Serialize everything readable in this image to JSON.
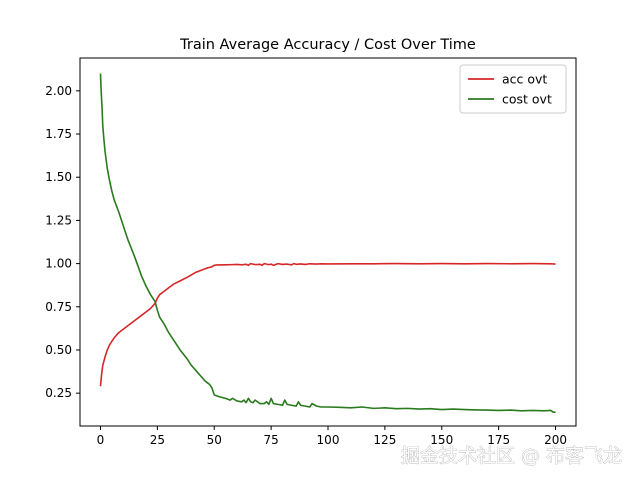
{
  "watermark": "掘金技术社区 @ 布客飞龙",
  "chart_data": {
    "type": "line",
    "title": "Train Average Accuracy / Cost Over Time",
    "xlabel": "",
    "ylabel": "",
    "xlim": [
      -9,
      209
    ],
    "ylim": [
      0.06,
      2.19
    ],
    "xticks": [
      0,
      25,
      50,
      75,
      100,
      125,
      150,
      175,
      200
    ],
    "xtick_labels": [
      "0",
      "25",
      "50",
      "75",
      "100",
      "125",
      "150",
      "175",
      "200"
    ],
    "yticks": [
      0.25,
      0.5,
      0.75,
      1.0,
      1.25,
      1.5,
      1.75,
      2.0
    ],
    "ytick_labels": [
      "0.25",
      "0.50",
      "0.75",
      "1.00",
      "1.25",
      "1.50",
      "1.75",
      "2.00"
    ],
    "grid": false,
    "legend_position": "top-right",
    "series": [
      {
        "name": "acc ovt",
        "color": "#d62728",
        "x": [
          0,
          0.5,
          1,
          2,
          3,
          4,
          5,
          6,
          8,
          10,
          12,
          15,
          18,
          20,
          22,
          24,
          25,
          26,
          28,
          30,
          32,
          35,
          38,
          40,
          42,
          44,
          46,
          47,
          48,
          49,
          50,
          51,
          52,
          55,
          58,
          60,
          62,
          64,
          65,
          66,
          68,
          70,
          71,
          72,
          74,
          75,
          76,
          78,
          80,
          82,
          84,
          85,
          86,
          88,
          90,
          92,
          95,
          97,
          100,
          110,
          120,
          130,
          140,
          150,
          160,
          170,
          180,
          190,
          198,
          200
        ],
        "y": [
          0.29,
          0.36,
          0.41,
          0.46,
          0.5,
          0.53,
          0.55,
          0.57,
          0.6,
          0.62,
          0.64,
          0.67,
          0.7,
          0.72,
          0.74,
          0.77,
          0.8,
          0.82,
          0.84,
          0.86,
          0.88,
          0.9,
          0.92,
          0.935,
          0.95,
          0.96,
          0.97,
          0.975,
          0.978,
          0.982,
          0.99,
          0.992,
          0.992,
          0.993,
          0.994,
          0.995,
          0.993,
          0.996,
          0.99,
          1.0,
          0.994,
          0.996,
          0.99,
          1.0,
          0.994,
          0.997,
          0.99,
          1.0,
          0.995,
          0.997,
          0.993,
          1.0,
          0.996,
          0.998,
          0.995,
          0.999,
          0.997,
          0.999,
          0.998,
          0.999,
          0.999,
          1.0,
          0.999,
          1.0,
          0.999,
          1.0,
          0.999,
          1.0,
          0.999,
          0.997
        ]
      },
      {
        "name": "cost ovt",
        "color": "#2a7a1e",
        "x": [
          0,
          0.3,
          0.7,
          1,
          1.5,
          2,
          3,
          4,
          5,
          6,
          8,
          10,
          12,
          15,
          18,
          20,
          22,
          24,
          25,
          26,
          28,
          30,
          32,
          35,
          38,
          40,
          42,
          44,
          46,
          47,
          48,
          49,
          50,
          52,
          55,
          57,
          58,
          60,
          62,
          63,
          64,
          65,
          66,
          67,
          68,
          70,
          72,
          73,
          74,
          75,
          76,
          78,
          80,
          81,
          82,
          84,
          86,
          87,
          88,
          90,
          92,
          93,
          95,
          97,
          100,
          105,
          110,
          115,
          120,
          125,
          130,
          135,
          140,
          145,
          150,
          155,
          160,
          165,
          170,
          175,
          180,
          185,
          190,
          195,
          198,
          199,
          200
        ],
        "y": [
          2.1,
          2.0,
          1.9,
          1.8,
          1.72,
          1.65,
          1.55,
          1.48,
          1.42,
          1.37,
          1.3,
          1.22,
          1.14,
          1.04,
          0.93,
          0.87,
          0.82,
          0.78,
          0.73,
          0.69,
          0.65,
          0.6,
          0.56,
          0.5,
          0.45,
          0.41,
          0.38,
          0.35,
          0.32,
          0.31,
          0.3,
          0.28,
          0.24,
          0.23,
          0.22,
          0.21,
          0.22,
          0.205,
          0.2,
          0.21,
          0.195,
          0.22,
          0.2,
          0.195,
          0.21,
          0.19,
          0.19,
          0.2,
          0.185,
          0.22,
          0.19,
          0.185,
          0.18,
          0.21,
          0.185,
          0.18,
          0.175,
          0.2,
          0.18,
          0.175,
          0.17,
          0.19,
          0.175,
          0.17,
          0.17,
          0.168,
          0.165,
          0.17,
          0.162,
          0.165,
          0.16,
          0.162,
          0.158,
          0.16,
          0.155,
          0.158,
          0.155,
          0.153,
          0.152,
          0.15,
          0.152,
          0.148,
          0.15,
          0.148,
          0.15,
          0.14,
          0.14
        ]
      }
    ]
  }
}
